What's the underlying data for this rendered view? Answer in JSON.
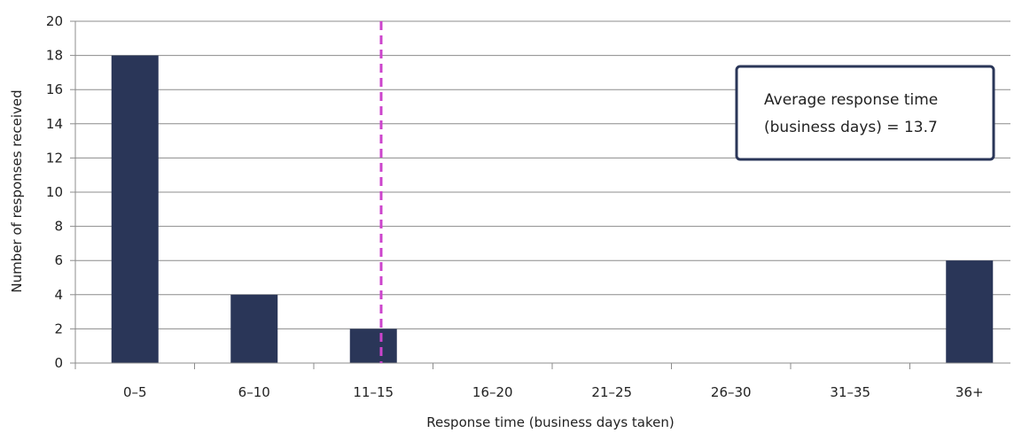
{
  "chart_data": {
    "type": "bar",
    "categories": [
      "0–5",
      "6–10",
      "11–15",
      "16–20",
      "21–25",
      "26–30",
      "31–35",
      "36+"
    ],
    "values": [
      18,
      4,
      2,
      0,
      0,
      0,
      0,
      6
    ],
    "xlabel": "Response time (business days taken)",
    "ylabel": "Number  of responses received",
    "ylim": [
      0,
      20
    ],
    "yticks": [
      0,
      2,
      4,
      6,
      8,
      10,
      12,
      14,
      16,
      18,
      20
    ],
    "grid": true,
    "bar_color": "#2a3658",
    "reference_line": {
      "x": 13.7,
      "color": "#cc44cc",
      "style": "dashed"
    },
    "annotation": {
      "lines": [
        "Average response  time",
        "(business  days) = 13.7"
      ],
      "border_color": "#2a3658",
      "placement": "top-right"
    }
  }
}
